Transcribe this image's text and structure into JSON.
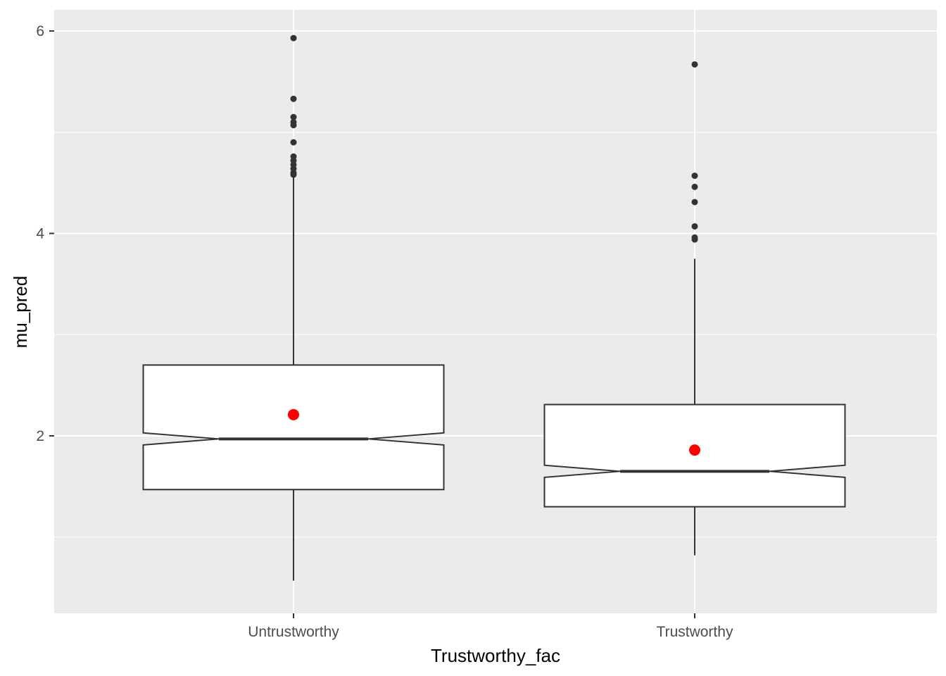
{
  "chart_data": {
    "type": "boxplot",
    "title": "",
    "xlabel": "Trustworthy_fac",
    "ylabel": "mu_pred",
    "categories": [
      "Untrustworthy",
      "Trustworthy"
    ],
    "ylim": [
      0.3,
      6.2
    ],
    "yticks": [
      2,
      4,
      6
    ],
    "grid": true,
    "legend": "none",
    "notched": true,
    "boxes": [
      {
        "category": "Untrustworthy",
        "whisker_low": 0.57,
        "q1": 1.47,
        "median": 1.97,
        "q3": 2.7,
        "whisker_high": 4.57,
        "notch_low": 1.91,
        "notch_high": 2.03,
        "mean": 2.21,
        "mean_se": 0.04,
        "outliers": [
          4.58,
          4.6,
          4.64,
          4.68,
          4.72,
          4.76,
          4.9,
          5.07,
          5.1,
          5.15,
          5.33,
          5.93
        ]
      },
      {
        "category": "Trustworthy",
        "whisker_low": 0.82,
        "q1": 1.3,
        "median": 1.65,
        "q3": 2.31,
        "whisker_high": 3.75,
        "notch_low": 1.59,
        "notch_high": 1.71,
        "mean": 1.86,
        "mean_se": 0.03,
        "outliers": [
          3.94,
          3.96,
          4.07,
          4.31,
          4.46,
          4.57,
          5.67
        ]
      }
    ],
    "colors": {
      "panel": "#ebebeb",
      "grid": "#ffffff",
      "box_fill": "#ffffff",
      "box_line": "#333333",
      "outlier": "#333333",
      "mean_point": "#ff0000",
      "tick_text": "#4d4d4d",
      "title_text": "#000000"
    }
  }
}
